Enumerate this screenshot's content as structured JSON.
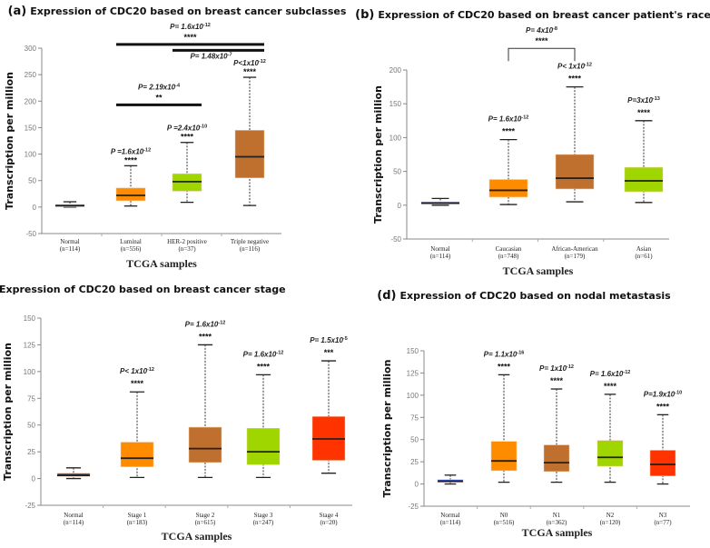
{
  "colors": {
    "blue": "#3a5ce0",
    "orange": "#ff8c00",
    "brown": "#c0702e",
    "green": "#9fd600",
    "red": "#ff3300"
  },
  "chart_data": [
    {
      "type": "box",
      "panel": "(a)",
      "title": "Expression of CDC20  based on  breast cancer subclasses",
      "xlabel": "TCGA samples",
      "ylabel": "Transcription per million",
      "ylim": [
        -50,
        300
      ],
      "yticks": [
        300,
        250,
        200,
        150,
        100,
        50,
        0,
        -50
      ],
      "categories": [
        {
          "name": "Normal",
          "n": "(n=114)",
          "color": "blue",
          "box": [
            0,
            2,
            3,
            4,
            10
          ],
          "p": "",
          "exp": "",
          "stars": ""
        },
        {
          "name": "Luminal",
          "n": "(n=556)",
          "color": "orange",
          "box": [
            2,
            12,
            22,
            36,
            78
          ],
          "p": "P =1.6x10",
          "exp": "-12",
          "stars": "****"
        },
        {
          "name": "HER-2 positive",
          "n": "(n=37)",
          "color": "green",
          "box": [
            9,
            30,
            48,
            63,
            122
          ],
          "p": "P =2.4x10",
          "exp": "-10",
          "stars": "****"
        },
        {
          "name": "Triple negative",
          "n": "(n=116)",
          "color": "brown",
          "box": [
            3,
            55,
            95,
            145,
            245
          ],
          "p": "P<1x10",
          "exp": "-12",
          "stars": "****"
        }
      ],
      "comparisons": [
        {
          "from": 1,
          "to": 2,
          "y": 193,
          "p": "P= 2.19x10",
          "exp": "-4",
          "stars": "**",
          "label_position": "above"
        },
        {
          "from": 1,
          "to": 3,
          "y": 307,
          "p": "P= 1.6x10",
          "exp": "-12",
          "stars": "****",
          "label_position": "above"
        },
        {
          "from": 2,
          "to": 3,
          "y": 296,
          "p": "P= 1.48x10",
          "exp": "-7",
          "stars": "",
          "label_position": "below"
        }
      ]
    },
    {
      "type": "box",
      "panel": "(b)",
      "title": "Expression of CDC20  based on breast cancer patient's race",
      "xlabel": "TCGA samples",
      "ylabel": "Transcription per million",
      "ylim": [
        -50,
        200
      ],
      "yticks": [
        200,
        150,
        100,
        50,
        0,
        -50
      ],
      "categories": [
        {
          "name": "Normal",
          "n": "(n=114)",
          "color": "blue",
          "box": [
            0,
            2,
            3,
            5,
            10
          ],
          "p": "",
          "exp": "",
          "stars": ""
        },
        {
          "name": "Caucasian",
          "n": "(n=748)",
          "color": "orange",
          "box": [
            1,
            12,
            22,
            38,
            97
          ],
          "p": "P= 1.6x10",
          "exp": "-12",
          "stars": "****"
        },
        {
          "name": "African-American",
          "n": "(n=179)",
          "color": "brown",
          "box": [
            5,
            24,
            40,
            75,
            175
          ],
          "p": "P< 1x10",
          "exp": "-12",
          "stars": "****"
        },
        {
          "name": "Asian",
          "n": "(n=61)",
          "color": "green",
          "box": [
            4,
            20,
            36,
            56,
            125
          ],
          "p": "P=3x10",
          "exp": "-13",
          "stars": "****"
        }
      ],
      "comparisons": [
        {
          "from": 1,
          "to": 2,
          "y": 232,
          "p": "P= 4x10",
          "exp": "-8",
          "stars": "****",
          "label_position": "above",
          "style": "bracket"
        }
      ]
    },
    {
      "type": "box",
      "panel": "(c)",
      "title": "Expression of CDC20  based on breast cancer stage",
      "xlabel": "TCGA samples",
      "ylabel": "Transcription per million",
      "ylim": [
        -25,
        150
      ],
      "yticks": [
        150,
        125,
        100,
        75,
        50,
        25,
        0,
        -25
      ],
      "categories": [
        {
          "name": "Normal",
          "n": "(n=114)",
          "color": "blue",
          "box": [
            0,
            2,
            3,
            5,
            10
          ],
          "p": "",
          "exp": "",
          "stars": ""
        },
        {
          "name": "Stage 1",
          "n": "(n=183)",
          "color": "orange",
          "box": [
            1,
            11,
            19,
            34,
            81
          ],
          "p": "P< 1x10",
          "exp": "-12",
          "stars": "****"
        },
        {
          "name": "Stage 2",
          "n": "(n=615)",
          "color": "brown",
          "box": [
            1,
            15,
            28,
            48,
            125
          ],
          "p": "P= 1.6x10",
          "exp": "-12",
          "stars": "****"
        },
        {
          "name": "Stage 3",
          "n": "(n=247)",
          "color": "green",
          "box": [
            1,
            13,
            25,
            47,
            97
          ],
          "p": "P= 1.6x10",
          "exp": "-12",
          "stars": "****"
        },
        {
          "name": "Stage 4",
          "n": "(n=20)",
          "color": "red",
          "box": [
            5,
            17,
            37,
            58,
            110
          ],
          "p": "P= 1.5x10",
          "exp": "-5",
          "stars": "***"
        }
      ],
      "comparisons": []
    },
    {
      "type": "box",
      "panel": "(d)",
      "title": "Expression of CDC20 based on nodal metastasis",
      "xlabel": "TCGA samples",
      "ylabel": "Transcription per million",
      "ylim": [
        -25,
        150
      ],
      "yticks": [
        150,
        125,
        100,
        75,
        50,
        25,
        0,
        -25
      ],
      "categories": [
        {
          "name": "Normal",
          "n": "(n=114)",
          "color": "blue",
          "box": [
            0,
            2,
            3,
            5,
            10
          ],
          "p": "",
          "exp": "",
          "stars": ""
        },
        {
          "name": "N0",
          "n": "(n=516)",
          "color": "orange",
          "box": [
            2,
            15,
            26,
            48,
            123
          ],
          "p": "P= 1.1x10",
          "exp": "-16",
          "stars": "****"
        },
        {
          "name": "N1",
          "n": "(n=362)",
          "color": "brown",
          "box": [
            2,
            14,
            24,
            44,
            107
          ],
          "p": "P= 1x10",
          "exp": "-12",
          "stars": "****"
        },
        {
          "name": "N2",
          "n": "(n=120)",
          "color": "green",
          "box": [
            2,
            20,
            30,
            49,
            101
          ],
          "p": "P= 1.6x10",
          "exp": "-12",
          "stars": "****"
        },
        {
          "name": "N3",
          "n": "(n=77)",
          "color": "red",
          "box": [
            0,
            9,
            22,
            38,
            78
          ],
          "p": "P=1.9x10",
          "exp": "-10",
          "stars": "****"
        }
      ],
      "comparisons": []
    }
  ]
}
